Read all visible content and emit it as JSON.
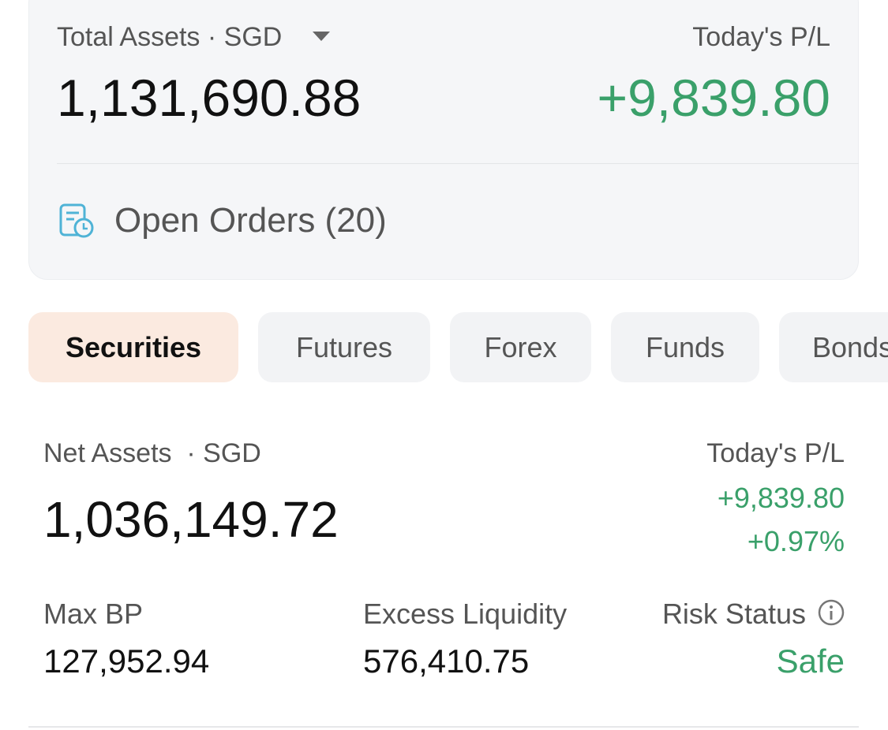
{
  "summary": {
    "total_assets_label": "Total Assets · SGD",
    "total_assets": "1,131,690.88",
    "pl_label": "Today's P/L",
    "pl": "+9,839.80",
    "open_orders": "Open Orders (20)"
  },
  "tabs": [
    "Securities",
    "Futures",
    "Forex",
    "Funds",
    "Bonds"
  ],
  "account": {
    "net_assets_label": "Net Assets  · SGD",
    "net_assets": "1,036,149.72",
    "pl_label": "Today's P/L",
    "pl": "+9,839.80",
    "pl_percent": "+0.97%",
    "metrics": [
      {
        "label": "Max BP",
        "value": "127,952.94"
      },
      {
        "label": "Excess Liquidity",
        "value": "576,410.75"
      },
      {
        "label": "Risk Status",
        "value": "Safe"
      }
    ]
  }
}
